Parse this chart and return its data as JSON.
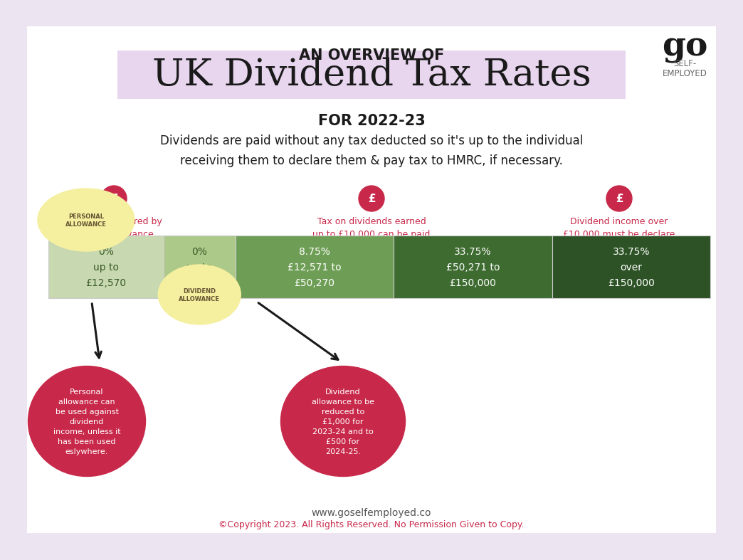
{
  "bg_outer": "#ece4f0",
  "bg_inner": "#ffffff",
  "title_line1": "AN OVERVIEW OF",
  "title_line2": "UK Dividend Tax Rates",
  "subtitle": "FOR 2022-23",
  "description": "Dividends are paid without any tax deducted so it's up to the individual\nreceiving them to declare them & pay tax to HMRC, if necessary.",
  "info_texts": [
    "Dividends covered by\n£2,000 allowance\nmay not need to be\ndeclared to HMRC",
    "Tax on dividends earned\nup to £10,000 can be paid\nthrough tax code if\nemployed in a job",
    "Dividend income over\n£10,000 must be declare\nthrough self\nassessment, in all cases"
  ],
  "bar_colors": [
    "#c8d8b0",
    "#adc98a",
    "#6e9e55",
    "#3d6b30",
    "#2d5225"
  ],
  "bar_labels": [
    "0%\nup to\n£12,570",
    "0%\nup to\n£2,000",
    "8.75%\n£12,571 to\n£50,270",
    "33.75%\n£50,271 to\n£150,000",
    "33.75%\nover\n£150,000"
  ],
  "bar_widths": [
    1.6,
    1.0,
    2.2,
    2.2,
    2.2
  ],
  "personal_allowance_label": "PERSONAL\nALLOWANCE",
  "dividend_allowance_label": "DIVIDEND\nALLOWANCE",
  "note1": "Personal\nallowance can\nbe used against\ndividend\nincome, unless it\nhas been used\neslywhere.",
  "note2": "Dividend\nallowance to be\nreduced to\n£1,000 for\n2023-24 and to\n£500 for\n2024-25.",
  "footer1": "www.goselfemployed.co",
  "footer2": "©Copyright 2023. All Rights Reserved. No Permission Given to Copy.",
  "red_color": "#c8294a",
  "dark_green": "#2d5225",
  "text_dark_green": "#3a5c28",
  "light_yellow": "#f5f0a0",
  "arrow_color": "#1a1a1a",
  "title_highlight": "#e8d5ee",
  "logo_color": "#1a1a1a",
  "logo_sub_color": "#666666"
}
